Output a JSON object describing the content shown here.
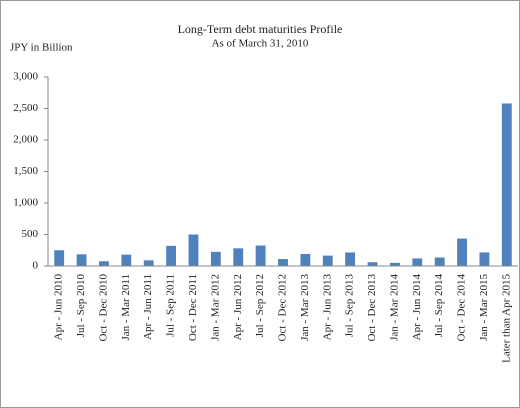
{
  "chart_data": {
    "type": "bar",
    "title": "Long-Term debt maturities Profile",
    "subtitle": "As of March 31, 2010",
    "y_label": "JPY in Billion",
    "categories": [
      "Apr - Jun 2010",
      "Jul - Sep 2010",
      "Oct - Dec 2010",
      "Jan - Mar 2011",
      "Apr - Jun 2011",
      "Jul - Sep 2011",
      "Oct - Dec 2011",
      "Jan - Mar 2012",
      "Apr - Jun 2012",
      "Jul - Sep 2012",
      "Oct - Dec 2012",
      "Jan - Mar 2013",
      "Apr - Jun 2013",
      "Jul - Sep 2013",
      "Oct - Dec 2013",
      "Jan - Mar 2014",
      "Apr - Jun 2014",
      "Jul - Sep 2014",
      "Oct - Dec 2014",
      "Jan - Mar 2015",
      "Later than Apr 2015"
    ],
    "values": [
      250,
      185,
      75,
      180,
      90,
      320,
      500,
      225,
      280,
      325,
      110,
      190,
      165,
      215,
      60,
      50,
      120,
      135,
      435,
      215,
      2580
    ],
    "color": "#4f81bd",
    "ylim": [
      0,
      3000
    ],
    "yticks": [
      0,
      500,
      {
        "value": 1000,
        "label": "1,000"
      },
      {
        "value": 1500,
        "label": "1,500"
      },
      {
        "value": 2000,
        "label": "2,000"
      },
      {
        "value": 2500,
        "label": "2,500"
      },
      {
        "value": 3000,
        "label": "3,000"
      }
    ],
    "grid": false
  }
}
